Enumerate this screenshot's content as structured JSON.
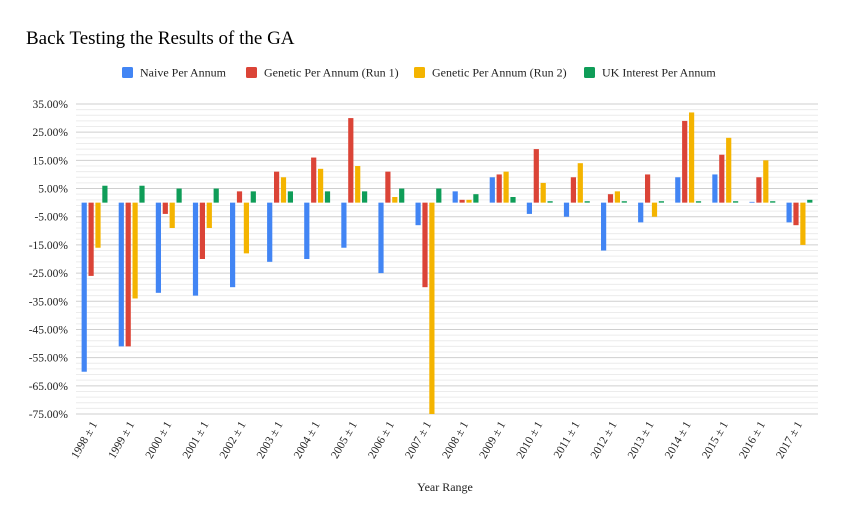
{
  "chart_data": {
    "type": "bar",
    "title": "Back Testing the Results of the GA",
    "xlabel": "Year Range",
    "ylabel": "",
    "ylim": [
      -0.75,
      0.35
    ],
    "y_ticks": [
      0.35,
      0.25,
      0.15,
      0.05,
      -0.05,
      -0.15,
      -0.25,
      -0.35,
      -0.45,
      -0.55,
      -0.65,
      -0.75
    ],
    "y_tick_labels": [
      "35.00%",
      "25.00%",
      "15.00%",
      "5.00%",
      "-5.00%",
      "-15.00%",
      "-25.00%",
      "-35.00%",
      "-45.00%",
      "-55.00%",
      "-65.00%",
      "-75.00%"
    ],
    "grid": true,
    "legend_position": "top",
    "categories": [
      "1998 ± 1",
      "1999 ± 1",
      "2000 ± 1",
      "2001 ± 1",
      "2002 ± 1",
      "2003 ± 1",
      "2004 ± 1",
      "2005 ± 1",
      "2006 ± 1",
      "2007 ± 1",
      "2008 ± 1",
      "2009 ± 1",
      "2010 ± 1",
      "2011 ± 1",
      "2012 ± 1",
      "2013 ± 1",
      "2014 ± 1",
      "2015 ± 1",
      "2016 ± 1",
      "2017 ± 1"
    ],
    "series": [
      {
        "name": "Naive Per Annum",
        "color": "#4285f4",
        "values": [
          -0.6,
          -0.51,
          -0.32,
          -0.33,
          -0.3,
          -0.21,
          -0.2,
          -0.16,
          -0.25,
          -0.08,
          0.04,
          0.09,
          -0.04,
          -0.05,
          -0.17,
          -0.07,
          0.09,
          0.1,
          0.0,
          -0.07
        ]
      },
      {
        "name": "Genetic Per Annum (Run 1)",
        "color": "#db4437",
        "values": [
          -0.26,
          -0.51,
          -0.04,
          -0.2,
          0.04,
          0.11,
          0.16,
          0.3,
          0.11,
          -0.3,
          0.01,
          0.1,
          0.19,
          0.09,
          0.03,
          0.1,
          0.29,
          0.17,
          0.09,
          -0.08
        ]
      },
      {
        "name": "Genetic Per Annum (Run 2)",
        "color": "#f4b400",
        "values": [
          -0.16,
          -0.34,
          -0.09,
          -0.09,
          -0.18,
          0.09,
          0.12,
          0.13,
          0.02,
          -0.75,
          0.01,
          0.11,
          0.07,
          0.14,
          0.04,
          -0.05,
          0.32,
          0.23,
          0.15,
          -0.15
        ]
      },
      {
        "name": "UK Interest Per Annum",
        "color": "#0f9d58",
        "values": [
          0.06,
          0.06,
          0.05,
          0.05,
          0.04,
          0.04,
          0.04,
          0.04,
          0.05,
          0.05,
          0.03,
          0.02,
          0.005,
          0.005,
          0.005,
          0.005,
          0.005,
          0.005,
          0.005,
          0.01
        ]
      }
    ]
  }
}
